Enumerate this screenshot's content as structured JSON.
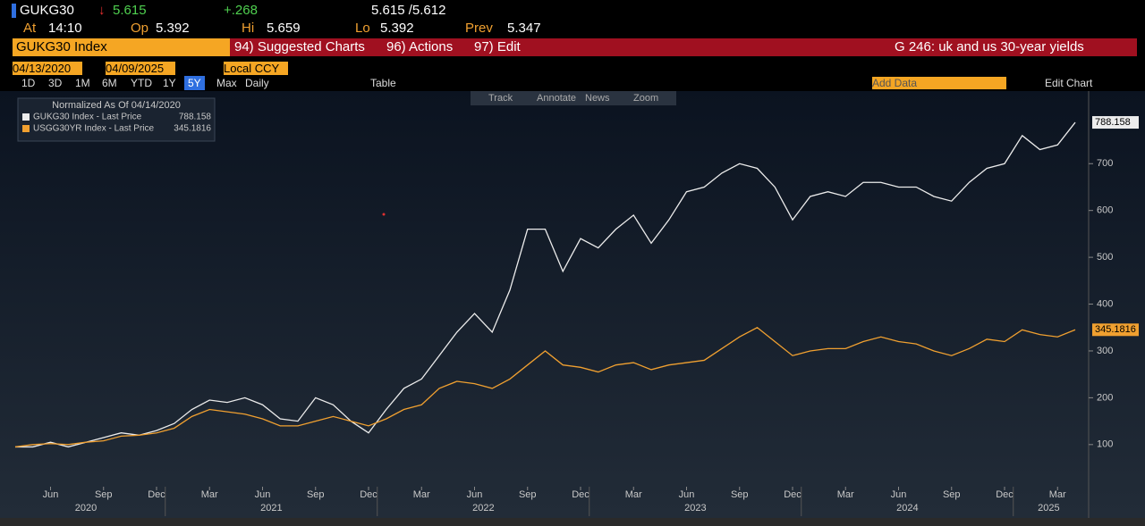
{
  "header": {
    "ticker": "GUKG30",
    "arrow": "↓",
    "last": "5.615",
    "change": "+.268",
    "bid_ask": "5.615 /5.612",
    "stats": [
      {
        "label": "At",
        "value": "14:10"
      },
      {
        "label": "Op",
        "value": "5.392"
      },
      {
        "label": "Hi",
        "value": "5.659"
      },
      {
        "label": "Lo",
        "value": "5.392"
      },
      {
        "label": "Prev",
        "value": "5.347"
      }
    ]
  },
  "toolbar": {
    "security": "GUKG30 Index",
    "menus": [
      "94) Suggested Charts",
      "96) Actions",
      "97) Edit"
    ],
    "chart_name": "G 246: uk and us 30-year yields",
    "start_date": "04/13/2020",
    "end_date": "04/09/2025",
    "currency": "Local CCY",
    "ranges": [
      "1D",
      "3D",
      "1M",
      "6M",
      "YTD",
      "1Y",
      "5Y",
      "Max"
    ],
    "active_range": "5Y",
    "frequency": "Daily",
    "table": "Table",
    "add_data": "Add Data",
    "edit_chart": "Edit Chart",
    "tools": [
      "Track",
      "Annotate",
      "News",
      "Zoom"
    ]
  },
  "chart_data": {
    "type": "line",
    "legend_title": "Normalized As Of 04/14/2020",
    "x": [
      "2020-04",
      "2020-05",
      "2020-06",
      "2020-07",
      "2020-08",
      "2020-09",
      "2020-10",
      "2020-11",
      "2020-12",
      "2021-01",
      "2021-02",
      "2021-03",
      "2021-04",
      "2021-05",
      "2021-06",
      "2021-07",
      "2021-08",
      "2021-09",
      "2021-10",
      "2021-11",
      "2021-12",
      "2022-01",
      "2022-02",
      "2022-03",
      "2022-04",
      "2022-05",
      "2022-06",
      "2022-07",
      "2022-08",
      "2022-09",
      "2022-10",
      "2022-11",
      "2022-12",
      "2023-01",
      "2023-02",
      "2023-03",
      "2023-04",
      "2023-05",
      "2023-06",
      "2023-07",
      "2023-08",
      "2023-09",
      "2023-10",
      "2023-11",
      "2023-12",
      "2024-01",
      "2024-02",
      "2024-03",
      "2024-04",
      "2024-05",
      "2024-06",
      "2024-07",
      "2024-08",
      "2024-09",
      "2024-10",
      "2024-11",
      "2024-12",
      "2025-01",
      "2025-02",
      "2025-03",
      "2025-04"
    ],
    "series": [
      {
        "name": "GUKG30 Index - Last Price",
        "color": "#ececec",
        "values": [
          95,
          95,
          105,
          95,
          105,
          115,
          125,
          120,
          130,
          145,
          175,
          195,
          190,
          200,
          185,
          155,
          150,
          200,
          185,
          150,
          125,
          175,
          220,
          240,
          290,
          340,
          380,
          340,
          430,
          560,
          560,
          470,
          540,
          520,
          560,
          590,
          530,
          580,
          640,
          650,
          680,
          700,
          690,
          650,
          580,
          630,
          640,
          630,
          660,
          660,
          650,
          650,
          630,
          620,
          660,
          690,
          700,
          760,
          730,
          740,
          788.158
        ]
      },
      {
        "name": "USGG30YR Index - Last Price",
        "color": "#f0a030",
        "values": [
          95,
          100,
          102,
          100,
          105,
          108,
          118,
          120,
          125,
          135,
          160,
          175,
          170,
          165,
          155,
          140,
          140,
          150,
          160,
          150,
          140,
          155,
          175,
          185,
          220,
          235,
          230,
          220,
          240,
          270,
          300,
          270,
          265,
          255,
          270,
          275,
          260,
          270,
          275,
          280,
          305,
          330,
          350,
          320,
          290,
          300,
          305,
          305,
          320,
          330,
          320,
          315,
          300,
          290,
          305,
          325,
          320,
          345,
          335,
          330,
          345.1816
        ]
      }
    ],
    "ylim": [
      10,
      855
    ],
    "yticks": [
      100,
      200,
      300,
      400,
      500,
      600,
      700
    ],
    "xticks": [
      {
        "value": "2020-06",
        "label": "Jun"
      },
      {
        "value": "2020-09",
        "label": "Sep"
      },
      {
        "value": "2020-12",
        "label": "Dec"
      },
      {
        "value": "2021-03",
        "label": "Mar"
      },
      {
        "value": "2021-06",
        "label": "Jun"
      },
      {
        "value": "2021-09",
        "label": "Sep"
      },
      {
        "value": "2021-12",
        "label": "Dec"
      },
      {
        "value": "2022-03",
        "label": "Mar"
      },
      {
        "value": "2022-06",
        "label": "Jun"
      },
      {
        "value": "2022-09",
        "label": "Sep"
      },
      {
        "value": "2022-12",
        "label": "Dec"
      },
      {
        "value": "2023-03",
        "label": "Mar"
      },
      {
        "value": "2023-06",
        "label": "Jun"
      },
      {
        "value": "2023-09",
        "label": "Sep"
      },
      {
        "value": "2023-12",
        "label": "Dec"
      },
      {
        "value": "2024-03",
        "label": "Mar"
      },
      {
        "value": "2024-06",
        "label": "Jun"
      },
      {
        "value": "2024-09",
        "label": "Sep"
      },
      {
        "value": "2024-12",
        "label": "Dec"
      },
      {
        "value": "2025-03",
        "label": "Mar"
      }
    ],
    "years": [
      "2020",
      "2021",
      "2022",
      "2023",
      "2024",
      "2025"
    ],
    "grid": false
  }
}
